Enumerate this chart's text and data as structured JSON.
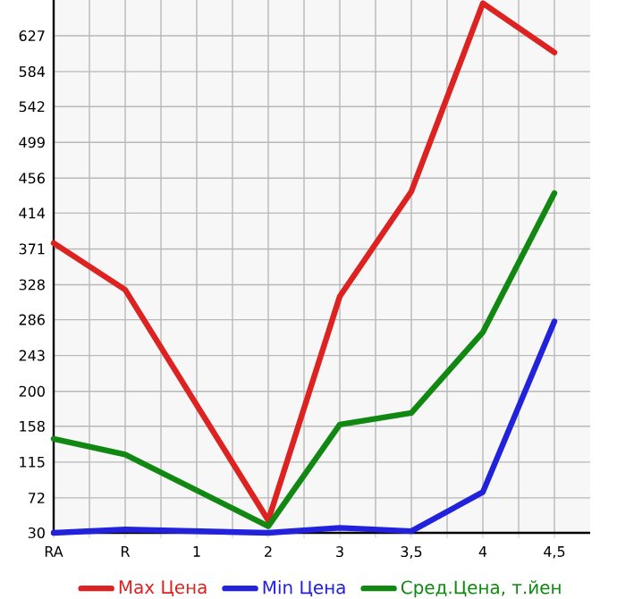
{
  "chart_data": {
    "type": "line",
    "categories": [
      "RA",
      "R",
      "1",
      "2",
      "3",
      "3,5",
      "4",
      "4,5"
    ],
    "series": [
      {
        "name": "Max Цена",
        "color": "#dd2222",
        "values": [
          378,
          322,
          null,
          45,
          314,
          440,
          666,
          607
        ]
      },
      {
        "name": "Min Цена",
        "color": "#2222dd",
        "values": [
          30,
          34,
          null,
          30,
          36,
          32,
          79,
          284
        ]
      },
      {
        "name": "Сред.Цена, т.йен",
        "color": "#118811",
        "values": [
          143,
          124,
          null,
          38,
          160,
          174,
          271,
          438
        ]
      }
    ],
    "ylim": [
      30,
      670
    ],
    "yticks": [
      30,
      72,
      115,
      158,
      200,
      243,
      286,
      328,
      371,
      414,
      456,
      499,
      542,
      584,
      627
    ],
    "grid": true,
    "legend": "bottom",
    "marker": "none",
    "line_style": "solid"
  }
}
